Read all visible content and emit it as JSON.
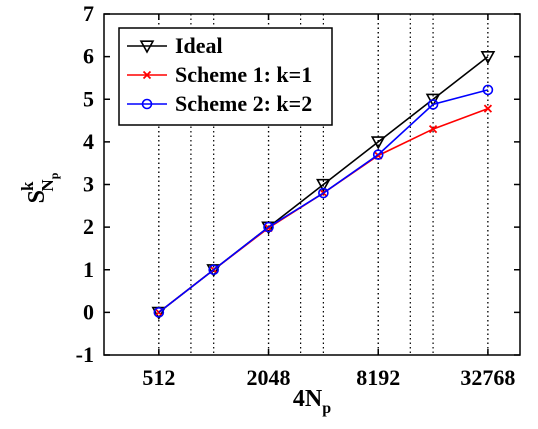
{
  "chart_data": {
    "type": "line",
    "title": "",
    "xlabel": {
      "base": "4N",
      "sub": "p"
    },
    "ylabel": {
      "base": "S",
      "sup": "k",
      "sub": "N",
      "subsub": "p"
    },
    "x_scale": "log2",
    "xlim": [
      256,
      49152
    ],
    "ylim": [
      -1,
      7
    ],
    "grid": "dotted, x-axis only",
    "xticks": [
      512,
      2048,
      8192,
      32768
    ],
    "xtick_labels": [
      "512",
      "2048",
      "8192",
      "32768"
    ],
    "yticks": [
      -1,
      0,
      1,
      2,
      3,
      4,
      5,
      6,
      7
    ],
    "ytick_labels": [
      "-1",
      "0",
      "1",
      "2",
      "3",
      "4",
      "5",
      "6",
      "7"
    ],
    "legend_position": "top-left",
    "x": [
      512,
      1024,
      2048,
      4096,
      8192,
      16384,
      32768
    ],
    "series": [
      {
        "name": "Ideal",
        "color": "#000000",
        "marker": "triangle-down",
        "values": [
          0,
          1,
          2,
          3,
          4,
          5,
          6
        ]
      },
      {
        "name": "Scheme 1: k=1",
        "color": "#ff0000",
        "marker": "x",
        "values": [
          0,
          1,
          1.98,
          2.8,
          3.68,
          4.3,
          4.78
        ]
      },
      {
        "name": "Scheme 2: k=2",
        "color": "#0000ff",
        "marker": "circle",
        "values": [
          0,
          1,
          2,
          2.8,
          3.7,
          4.88,
          5.22
        ]
      }
    ]
  }
}
